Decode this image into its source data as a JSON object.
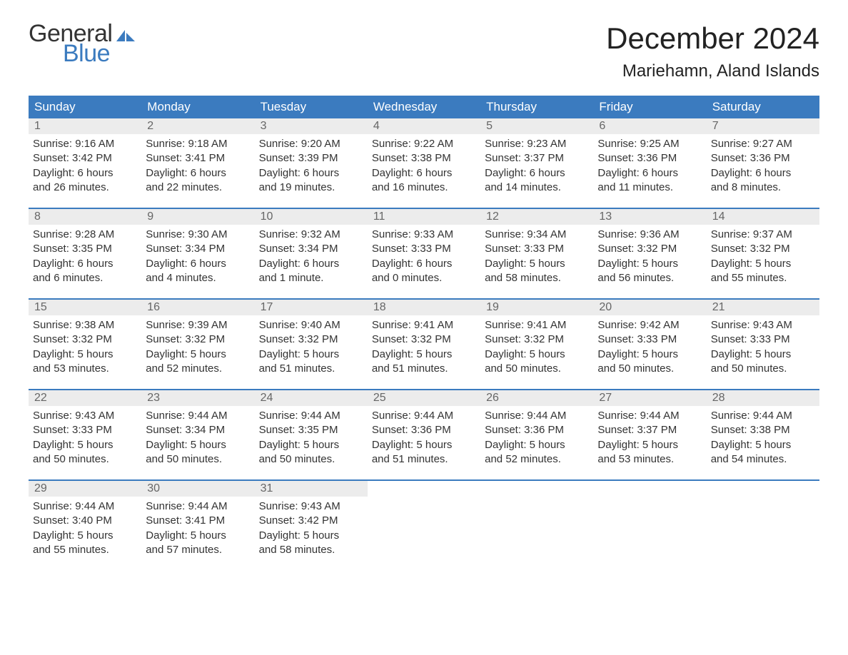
{
  "brand": {
    "name1": "General",
    "name2": "Blue",
    "color1": "#333333",
    "color2": "#3b7bbf",
    "icon_color": "#3b7bbf"
  },
  "title": "December 2024",
  "location": "Mariehamn, Aland Islands",
  "styling": {
    "header_bg": "#3b7bbf",
    "header_text": "#ffffff",
    "daynum_bg": "#ececec",
    "daynum_text": "#666666",
    "week_border": "#3b7bbf",
    "body_text": "#333333",
    "page_bg": "#ffffff",
    "title_fontsize": 42,
    "location_fontsize": 24,
    "weekday_fontsize": 17,
    "body_fontsize": 15
  },
  "weekdays": [
    "Sunday",
    "Monday",
    "Tuesday",
    "Wednesday",
    "Thursday",
    "Friday",
    "Saturday"
  ],
  "weeks": [
    [
      {
        "n": "1",
        "sunrise": "Sunrise: 9:16 AM",
        "sunset": "Sunset: 3:42 PM",
        "dl1": "Daylight: 6 hours",
        "dl2": "and 26 minutes."
      },
      {
        "n": "2",
        "sunrise": "Sunrise: 9:18 AM",
        "sunset": "Sunset: 3:41 PM",
        "dl1": "Daylight: 6 hours",
        "dl2": "and 22 minutes."
      },
      {
        "n": "3",
        "sunrise": "Sunrise: 9:20 AM",
        "sunset": "Sunset: 3:39 PM",
        "dl1": "Daylight: 6 hours",
        "dl2": "and 19 minutes."
      },
      {
        "n": "4",
        "sunrise": "Sunrise: 9:22 AM",
        "sunset": "Sunset: 3:38 PM",
        "dl1": "Daylight: 6 hours",
        "dl2": "and 16 minutes."
      },
      {
        "n": "5",
        "sunrise": "Sunrise: 9:23 AM",
        "sunset": "Sunset: 3:37 PM",
        "dl1": "Daylight: 6 hours",
        "dl2": "and 14 minutes."
      },
      {
        "n": "6",
        "sunrise": "Sunrise: 9:25 AM",
        "sunset": "Sunset: 3:36 PM",
        "dl1": "Daylight: 6 hours",
        "dl2": "and 11 minutes."
      },
      {
        "n": "7",
        "sunrise": "Sunrise: 9:27 AM",
        "sunset": "Sunset: 3:36 PM",
        "dl1": "Daylight: 6 hours",
        "dl2": "and 8 minutes."
      }
    ],
    [
      {
        "n": "8",
        "sunrise": "Sunrise: 9:28 AM",
        "sunset": "Sunset: 3:35 PM",
        "dl1": "Daylight: 6 hours",
        "dl2": "and 6 minutes."
      },
      {
        "n": "9",
        "sunrise": "Sunrise: 9:30 AM",
        "sunset": "Sunset: 3:34 PM",
        "dl1": "Daylight: 6 hours",
        "dl2": "and 4 minutes."
      },
      {
        "n": "10",
        "sunrise": "Sunrise: 9:32 AM",
        "sunset": "Sunset: 3:34 PM",
        "dl1": "Daylight: 6 hours",
        "dl2": "and 1 minute."
      },
      {
        "n": "11",
        "sunrise": "Sunrise: 9:33 AM",
        "sunset": "Sunset: 3:33 PM",
        "dl1": "Daylight: 6 hours",
        "dl2": "and 0 minutes."
      },
      {
        "n": "12",
        "sunrise": "Sunrise: 9:34 AM",
        "sunset": "Sunset: 3:33 PM",
        "dl1": "Daylight: 5 hours",
        "dl2": "and 58 minutes."
      },
      {
        "n": "13",
        "sunrise": "Sunrise: 9:36 AM",
        "sunset": "Sunset: 3:32 PM",
        "dl1": "Daylight: 5 hours",
        "dl2": "and 56 minutes."
      },
      {
        "n": "14",
        "sunrise": "Sunrise: 9:37 AM",
        "sunset": "Sunset: 3:32 PM",
        "dl1": "Daylight: 5 hours",
        "dl2": "and 55 minutes."
      }
    ],
    [
      {
        "n": "15",
        "sunrise": "Sunrise: 9:38 AM",
        "sunset": "Sunset: 3:32 PM",
        "dl1": "Daylight: 5 hours",
        "dl2": "and 53 minutes."
      },
      {
        "n": "16",
        "sunrise": "Sunrise: 9:39 AM",
        "sunset": "Sunset: 3:32 PM",
        "dl1": "Daylight: 5 hours",
        "dl2": "and 52 minutes."
      },
      {
        "n": "17",
        "sunrise": "Sunrise: 9:40 AM",
        "sunset": "Sunset: 3:32 PM",
        "dl1": "Daylight: 5 hours",
        "dl2": "and 51 minutes."
      },
      {
        "n": "18",
        "sunrise": "Sunrise: 9:41 AM",
        "sunset": "Sunset: 3:32 PM",
        "dl1": "Daylight: 5 hours",
        "dl2": "and 51 minutes."
      },
      {
        "n": "19",
        "sunrise": "Sunrise: 9:41 AM",
        "sunset": "Sunset: 3:32 PM",
        "dl1": "Daylight: 5 hours",
        "dl2": "and 50 minutes."
      },
      {
        "n": "20",
        "sunrise": "Sunrise: 9:42 AM",
        "sunset": "Sunset: 3:33 PM",
        "dl1": "Daylight: 5 hours",
        "dl2": "and 50 minutes."
      },
      {
        "n": "21",
        "sunrise": "Sunrise: 9:43 AM",
        "sunset": "Sunset: 3:33 PM",
        "dl1": "Daylight: 5 hours",
        "dl2": "and 50 minutes."
      }
    ],
    [
      {
        "n": "22",
        "sunrise": "Sunrise: 9:43 AM",
        "sunset": "Sunset: 3:33 PM",
        "dl1": "Daylight: 5 hours",
        "dl2": "and 50 minutes."
      },
      {
        "n": "23",
        "sunrise": "Sunrise: 9:44 AM",
        "sunset": "Sunset: 3:34 PM",
        "dl1": "Daylight: 5 hours",
        "dl2": "and 50 minutes."
      },
      {
        "n": "24",
        "sunrise": "Sunrise: 9:44 AM",
        "sunset": "Sunset: 3:35 PM",
        "dl1": "Daylight: 5 hours",
        "dl2": "and 50 minutes."
      },
      {
        "n": "25",
        "sunrise": "Sunrise: 9:44 AM",
        "sunset": "Sunset: 3:36 PM",
        "dl1": "Daylight: 5 hours",
        "dl2": "and 51 minutes."
      },
      {
        "n": "26",
        "sunrise": "Sunrise: 9:44 AM",
        "sunset": "Sunset: 3:36 PM",
        "dl1": "Daylight: 5 hours",
        "dl2": "and 52 minutes."
      },
      {
        "n": "27",
        "sunrise": "Sunrise: 9:44 AM",
        "sunset": "Sunset: 3:37 PM",
        "dl1": "Daylight: 5 hours",
        "dl2": "and 53 minutes."
      },
      {
        "n": "28",
        "sunrise": "Sunrise: 9:44 AM",
        "sunset": "Sunset: 3:38 PM",
        "dl1": "Daylight: 5 hours",
        "dl2": "and 54 minutes."
      }
    ],
    [
      {
        "n": "29",
        "sunrise": "Sunrise: 9:44 AM",
        "sunset": "Sunset: 3:40 PM",
        "dl1": "Daylight: 5 hours",
        "dl2": "and 55 minutes."
      },
      {
        "n": "30",
        "sunrise": "Sunrise: 9:44 AM",
        "sunset": "Sunset: 3:41 PM",
        "dl1": "Daylight: 5 hours",
        "dl2": "and 57 minutes."
      },
      {
        "n": "31",
        "sunrise": "Sunrise: 9:43 AM",
        "sunset": "Sunset: 3:42 PM",
        "dl1": "Daylight: 5 hours",
        "dl2": "and 58 minutes."
      },
      {
        "empty": true
      },
      {
        "empty": true
      },
      {
        "empty": true
      },
      {
        "empty": true
      }
    ]
  ]
}
